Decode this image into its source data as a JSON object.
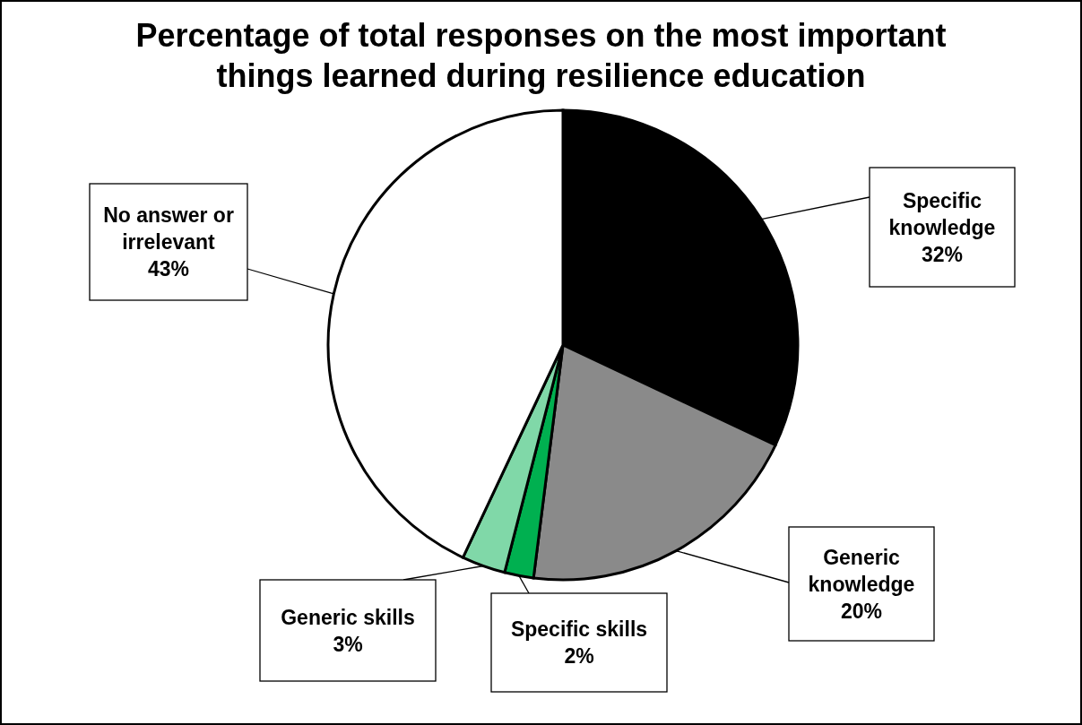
{
  "chart_data": {
    "type": "pie",
    "title": "Percentage of total responses on the most important things learned during resilience education",
    "categories": [
      "Specific knowledge",
      "Generic knowledge",
      "Specific skills",
      "Generic skills",
      "No answer or irrelevant"
    ],
    "values": [
      32,
      20,
      2,
      3,
      43
    ],
    "value_labels": [
      "32%",
      "20%",
      "2%",
      "3%",
      "43%"
    ],
    "colors": [
      "#000000",
      "#8a8a8a",
      "#00b050",
      "#80d8a8",
      "#ffffff"
    ]
  }
}
